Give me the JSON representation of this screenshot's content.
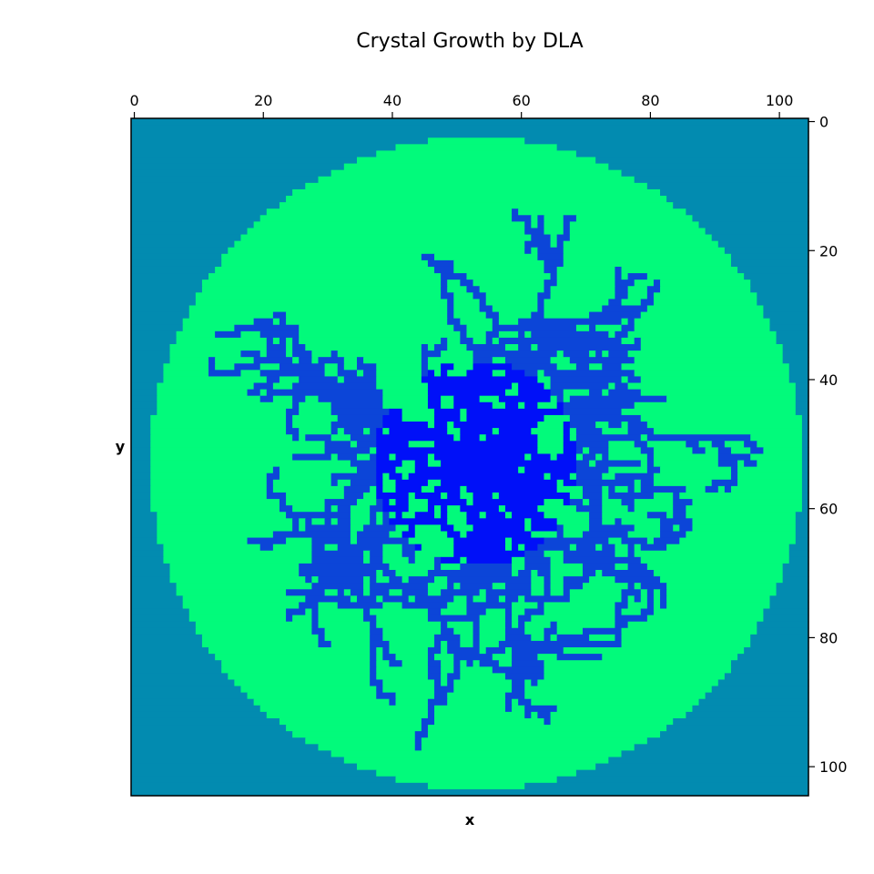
{
  "chart_data": {
    "type": "heatmap",
    "title": "Crystal Growth by DLA",
    "xlabel": "x",
    "ylabel": "y",
    "x_axis_position": "top",
    "y_axis_position": "right",
    "xlim": [
      -0.5,
      104.5
    ],
    "ylim": [
      104.5,
      -0.5
    ],
    "x_ticks": [
      0,
      20,
      40,
      60,
      80,
      100
    ],
    "y_ticks": [
      0,
      20,
      40,
      60,
      80,
      100
    ],
    "grid": false,
    "grid_size": 105,
    "domain": {
      "shape": "disk",
      "center": [
        53,
        53
      ],
      "radius": 50.5
    },
    "seed_cell": [
      53,
      53
    ],
    "approx_branch_tip_directions_deg": [
      -90,
      -72,
      -118,
      -150,
      -165,
      -180,
      -200,
      160,
      140,
      120,
      100,
      80,
      55,
      30,
      15,
      0,
      -15,
      -35,
      -55,
      -80
    ],
    "colors": {
      "outside": "#028bb0",
      "medium": "#02fa7b",
      "cluster_old": "#0c45d8",
      "cluster_young": "#0010f8"
    }
  }
}
